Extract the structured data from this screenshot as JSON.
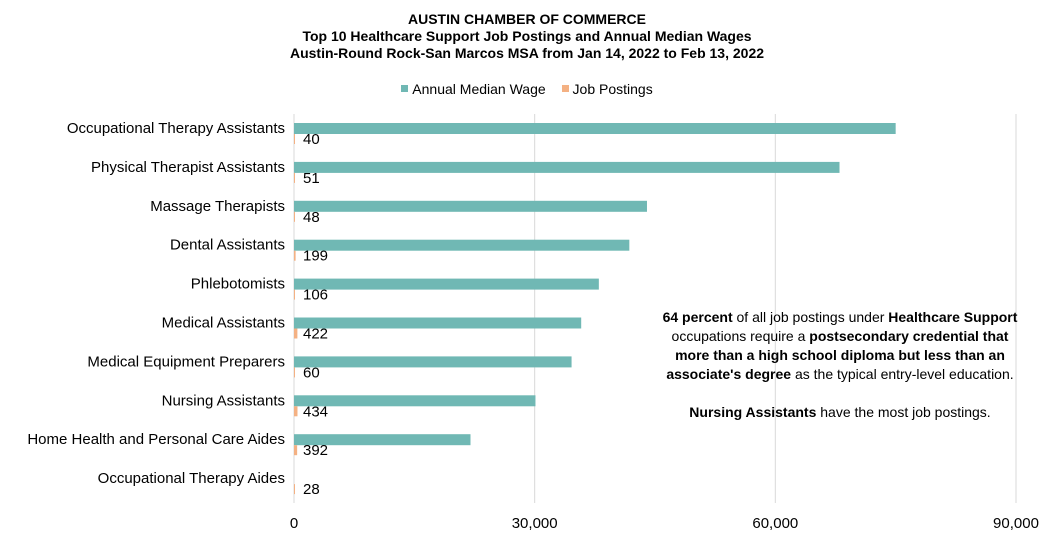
{
  "colors": {
    "wage": "#70B8B4",
    "postings": "#F4B183",
    "grid": "#D9D9D9"
  },
  "chart_data": {
    "type": "bar",
    "orientation": "horizontal",
    "title": "AUSTIN CHAMBER OF COMMERCE",
    "subtitle_1": "Top 10 Healthcare Support Job Postings and Annual Median Wages",
    "subtitle_2": "Austin-Round Rock-San Marcos MSA from Jan 14, 2022 to Feb 13, 2022",
    "legend_position": "top",
    "grid": true,
    "xlim": [
      0,
      90000
    ],
    "xticks": [
      {
        "value": 0,
        "label": "0"
      },
      {
        "value": 30000,
        "label": "30,000"
      },
      {
        "value": 60000,
        "label": "60,000"
      },
      {
        "value": 90000,
        "label": "90,000"
      }
    ],
    "categories": [
      "Occupational Therapy Assistants",
      "Physical Therapist Assistants",
      "Massage Therapists",
      "Dental Assistants",
      "Phlebotomists",
      "Medical Assistants",
      "Medical Equipment Preparers",
      "Nursing Assistants",
      "Home Health and Personal Care Aides",
      "Occupational Therapy Aides"
    ],
    "series": [
      {
        "name": "Annual Median Wage",
        "color": "#70B8B4",
        "values": [
          75000,
          68000,
          44000,
          41800,
          38000,
          35800,
          34600,
          30100,
          22000,
          0
        ]
      },
      {
        "name": "Job Postings",
        "color": "#F4B183",
        "values": [
          40,
          51,
          48,
          199,
          106,
          422,
          60,
          434,
          392,
          28
        ],
        "labels": [
          "40",
          "51",
          "48",
          "199",
          "106",
          "422",
          "60",
          "434",
          "392",
          "28"
        ]
      }
    ]
  },
  "note": {
    "line1_bold": "64 percent",
    "line1_a": " of all job postings under ",
    "line1_bold2": "Healthcare Support",
    "line2_a": "occupations require a ",
    "line2_bold": "postsecondary credential that",
    "line3_bold": "more than a high school diploma but less than an",
    "line4_bold": "associate's degree",
    "line4_a": " as the typical entry-level education.",
    "line5_bold": "Nursing Assistants",
    "line5_a": "  have the most job postings."
  }
}
